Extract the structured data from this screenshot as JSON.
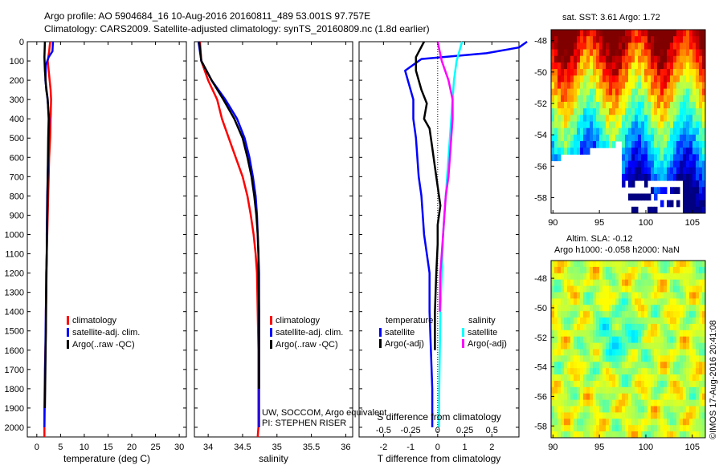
{
  "header": {
    "title_line1": "Argo profile: AO 5904684_16 10-Aug-2016 20160811_489 53.001S 97.757E",
    "title_line2": "Climatology: CARS2009. Satellite-adjusted climatology: synTS_20160809.nc (1.8d earlier)"
  },
  "colors": {
    "climatology": "#ff0000",
    "satellite": "#0000ff",
    "argo": "#000000",
    "sal_satellite": "#00ffff",
    "sal_argo": "#ff00ff"
  },
  "depth_ticks": [
    0,
    100,
    200,
    300,
    400,
    500,
    600,
    700,
    800,
    900,
    1000,
    1100,
    1200,
    1300,
    1400,
    1500,
    1600,
    1700,
    1800,
    1900,
    2000
  ],
  "chart_data": [
    {
      "type": "line",
      "xlabel": "temperature (deg C)",
      "xticks": [
        0,
        5,
        10,
        15,
        20,
        25,
        30
      ],
      "xlim": [
        -2,
        31.5
      ],
      "ylim": [
        2050,
        0
      ],
      "series": [
        {
          "name": "climatology",
          "color": "#ff0000",
          "x": [
            2.8,
            2.6,
            2.3,
            2.5,
            2.9,
            3.0,
            2.9,
            2.8,
            2.6,
            2.5,
            2.4,
            2.3,
            2.2,
            2.1,
            2.0,
            2.0,
            1.9,
            1.9,
            1.8,
            1.7,
            1.6,
            1.6
          ],
          "y": [
            0,
            50,
            100,
            150,
            250,
            300,
            400,
            500,
            600,
            700,
            800,
            900,
            1000,
            1100,
            1200,
            1300,
            1400,
            1500,
            1600,
            1700,
            1900,
            2050
          ]
        },
        {
          "name": "satellite-adj. clim.",
          "color": "#0000ff",
          "x": [
            3.4,
            3.3,
            2.5,
            1.9,
            1.8,
            2.2,
            2.6,
            2.5,
            2.4,
            2.3,
            2.2,
            2.1,
            2.1,
            2.0,
            1.9,
            1.8,
            1.7,
            1.6
          ],
          "y": [
            0,
            50,
            80,
            120,
            200,
            280,
            400,
            500,
            600,
            700,
            800,
            1000,
            1100,
            1200,
            1400,
            1600,
            1800,
            2000
          ]
        },
        {
          "name": "Argo(..raw -QC)",
          "color": "#000000",
          "x": [
            1.7,
            1.6,
            1.7,
            2.0,
            2.3,
            2.5,
            2.4,
            2.3,
            2.2,
            2.1,
            2.0,
            1.9,
            1.8,
            1.7
          ],
          "y": [
            0,
            80,
            150,
            250,
            300,
            400,
            500,
            700,
            900,
            1100,
            1300,
            1500,
            1700,
            1900
          ]
        }
      ],
      "legend": [
        "climatology",
        "satellite-adj. clim.",
        "Argo(..raw -QC)"
      ]
    },
    {
      "type": "line",
      "xlabel": "salinity",
      "xticks": [
        34,
        34.5,
        35,
        35.5,
        36
      ],
      "xlim": [
        33.8,
        36.1
      ],
      "ylim": [
        2050,
        0
      ],
      "series": [
        {
          "name": "climatology",
          "color": "#ff0000",
          "x": [
            33.88,
            33.9,
            34.0,
            34.13,
            34.2,
            34.3,
            34.4,
            34.5,
            34.57,
            34.62,
            34.66,
            34.69,
            34.71,
            34.72,
            34.73,
            34.73,
            34.73,
            34.72
          ],
          "y": [
            0,
            100,
            200,
            300,
            400,
            500,
            600,
            700,
            800,
            900,
            1000,
            1100,
            1200,
            1400,
            1600,
            1800,
            2000,
            2050
          ]
        },
        {
          "name": "satellite-adj. clim.",
          "color": "#0000ff",
          "x": [
            33.86,
            33.9,
            34.05,
            34.25,
            34.42,
            34.53,
            34.6,
            34.65,
            34.69,
            34.71,
            34.72,
            34.73,
            34.74,
            34.74,
            34.74,
            34.74,
            34.74
          ],
          "y": [
            0,
            100,
            200,
            300,
            400,
            500,
            600,
            700,
            800,
            900,
            1000,
            1100,
            1200,
            1400,
            1600,
            1800,
            2000
          ]
        },
        {
          "name": "Argo(..raw -QC)",
          "color": "#000000",
          "x": [
            33.87,
            33.9,
            34.05,
            34.22,
            34.38,
            34.5,
            34.57,
            34.63,
            34.67,
            34.7,
            34.72,
            34.73,
            34.73,
            34.74,
            34.74,
            34.74
          ],
          "y": [
            0,
            100,
            200,
            300,
            400,
            500,
            600,
            700,
            800,
            900,
            1000,
            1100,
            1200,
            1400,
            1600,
            1800
          ]
        }
      ],
      "legend": [
        "climatology",
        "satellite-adj. clim.",
        "Argo(..raw -QC)"
      ]
    },
    {
      "type": "line",
      "xlabel": "T difference from climatology",
      "xlabel_top": "S difference from climatology",
      "xticks": [
        -2,
        -1,
        0,
        1,
        2
      ],
      "xticks_top": [
        "-0.5",
        "-0.25",
        "0",
        "0.25",
        "0.5"
      ],
      "xlim": [
        -2.9,
        3.0
      ],
      "ylim": [
        2050,
        0
      ],
      "series": [
        {
          "name": "temperature satellite",
          "color": "#0000ff",
          "x": [
            3.3,
            3.0,
            1.8,
            -0.6,
            -1.2,
            -0.9,
            -0.9,
            -0.8,
            -0.75,
            -0.7,
            -0.6,
            -0.5,
            -0.4,
            -0.3,
            -0.3,
            -0.25,
            -0.2,
            -0.2
          ],
          "y": [
            0,
            30,
            60,
            90,
            150,
            300,
            400,
            500,
            600,
            700,
            800,
            1000,
            1100,
            1200,
            1400,
            1600,
            1800,
            2000
          ]
        },
        {
          "name": "temperature Argo(-adj)",
          "color": "#000000",
          "x": [
            -0.5,
            -0.8,
            -0.8,
            -0.6,
            -0.4,
            -0.5,
            -0.3,
            -0.2,
            -0.1,
            0.0,
            0.1,
            0.0,
            0.0,
            -0.05,
            -0.1,
            -0.1
          ],
          "y": [
            0,
            80,
            150,
            250,
            320,
            400,
            450,
            550,
            650,
            750,
            850,
            950,
            1050,
            1200,
            1400,
            1600
          ]
        },
        {
          "name": "salinity satellite",
          "color": "#00ffff",
          "x": [
            0.9,
            0.7,
            0.6,
            0.55,
            0.5,
            0.45,
            0.4,
            0.35,
            0.3,
            0.25,
            0.2,
            0.15,
            0.1,
            0.08,
            0.06,
            0.05
          ],
          "y": [
            0,
            100,
            200,
            300,
            400,
            500,
            600,
            700,
            800,
            900,
            1000,
            1200,
            1400,
            1600,
            1800,
            2000
          ]
        },
        {
          "name": "salinity Argo(-adj)",
          "color": "#ff00ff",
          "x": [
            0.0,
            0.15,
            0.4,
            0.55,
            0.55,
            0.5,
            0.45,
            0.4,
            0.3,
            0.25,
            0.2,
            0.15,
            0.1,
            0.08
          ],
          "y": [
            0,
            100,
            200,
            300,
            400,
            500,
            600,
            700,
            800,
            900,
            1000,
            1100,
            1200,
            1400
          ]
        }
      ],
      "legend_headers": [
        "temperature",
        "salinity"
      ],
      "legend": [
        "satellite",
        "Argo(-adj)",
        "satellite",
        "Argo(-adj)"
      ]
    },
    {
      "type": "heatmap",
      "title": "sat. SST: 3.61  Argo: 1.72",
      "xticks": [
        90,
        95,
        100,
        105
      ],
      "yticks": [
        -48,
        -50,
        -52,
        -54,
        -56,
        -58
      ]
    },
    {
      "type": "heatmap",
      "title_line1": "Altim. SLA: -0.12",
      "title_line2": "Argo h1000: -0.058 h2000: NaN",
      "xticks": [
        90,
        95,
        100,
        105
      ],
      "yticks": [
        -48,
        -50,
        -52,
        -54,
        -56,
        -58
      ]
    }
  ],
  "legends": {
    "temperature": [
      "climatology",
      "satellite-adj. clim.",
      "Argo(..raw -QC)"
    ],
    "salinity": [
      "climatology",
      "satellite-adj. clim.",
      "Argo(..raw -QC)"
    ],
    "diff_headers": [
      "temperature",
      "salinity"
    ],
    "diff": [
      "satellite",
      "Argo(-adj)",
      "satellite",
      "Argo(-adj)"
    ]
  },
  "labels": {
    "temp_xlabel": "temperature (deg C)",
    "sal_xlabel": "salinity",
    "diff_xlabel": "T difference from climatology",
    "diff_xlabel_top": "S difference from climatology",
    "footer1": "UW, SOCCOM, Argo equivalent",
    "footer2": "PI: STEPHEN RISER",
    "imos": "©IMOS 17-Aug-2016 20:41:08"
  },
  "maps": {
    "sst_title": "sat. SST: 3.61  Argo: 1.72",
    "sla_title1": "Altim. SLA: -0.12",
    "sla_title2": "Argo h1000: -0.058 h2000: NaN",
    "xticks": [
      90,
      95,
      100,
      105
    ],
    "yticks": [
      -48,
      -50,
      -52,
      -54,
      -56,
      -58
    ]
  }
}
